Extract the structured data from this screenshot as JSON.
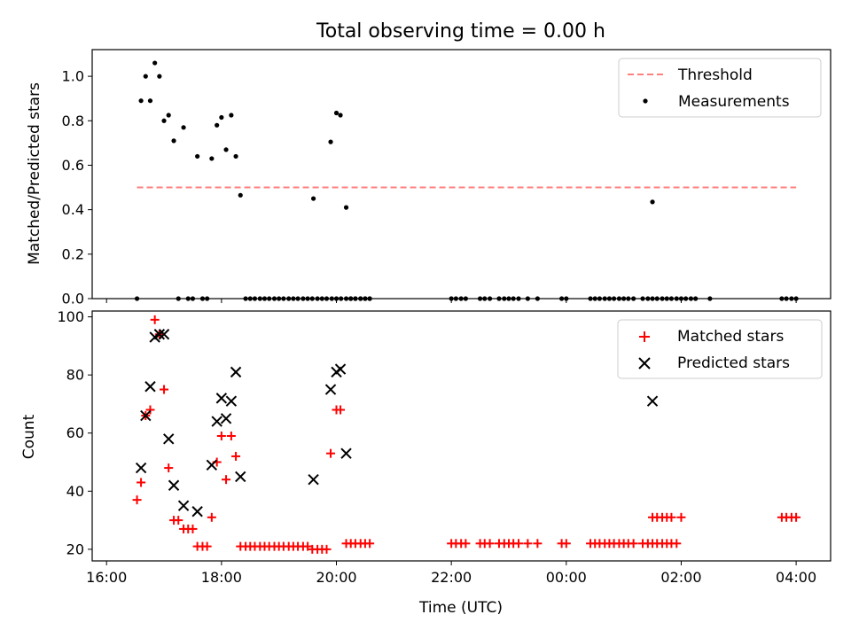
{
  "chart_data": [
    {
      "type": "scatter",
      "title": "Total observing time = 0.00 h",
      "ylabel": "Matched/Predicted stars",
      "xlabel": "",
      "x_unit": "hours since 16:00 UTC",
      "xlim": [
        -0.25,
        12.6
      ],
      "ylim": [
        0,
        1.12
      ],
      "yticks": [
        0.0,
        0.2,
        0.4,
        0.6,
        0.8,
        1.0
      ],
      "ytick_labels": [
        "0.0",
        "0.2",
        "0.4",
        "0.6",
        "0.8",
        "1.0"
      ],
      "legend_position": "top-right",
      "threshold": {
        "name": "Threshold",
        "value": 0.5,
        "x_range": [
          0.53,
          12.0
        ],
        "color": "#ff7f7f",
        "style": "dashed"
      },
      "series": [
        {
          "name": "Measurements",
          "color": "#000000",
          "marker": "dot",
          "points": [
            [
              0.53,
              0.0
            ],
            [
              0.6,
              0.89
            ],
            [
              0.68,
              1.0
            ],
            [
              0.76,
              0.89
            ],
            [
              0.84,
              1.06
            ],
            [
              0.92,
              1.0
            ],
            [
              1.0,
              0.8
            ],
            [
              1.08,
              0.825
            ],
            [
              1.17,
              0.71
            ],
            [
              1.25,
              0.0
            ],
            [
              1.34,
              0.77
            ],
            [
              1.42,
              0.0
            ],
            [
              1.5,
              0.0
            ],
            [
              1.58,
              0.64
            ],
            [
              1.67,
              0.0
            ],
            [
              1.75,
              0.0
            ],
            [
              1.83,
              0.63
            ],
            [
              1.92,
              0.78
            ],
            [
              2.0,
              0.815
            ],
            [
              2.08,
              0.67
            ],
            [
              2.17,
              0.825
            ],
            [
              2.25,
              0.64
            ],
            [
              2.33,
              0.465
            ],
            [
              2.42,
              0.0
            ],
            [
              2.5,
              0.0
            ],
            [
              2.58,
              0.0
            ],
            [
              2.67,
              0.0
            ],
            [
              2.75,
              0.0
            ],
            [
              2.83,
              0.0
            ],
            [
              2.92,
              0.0
            ],
            [
              3.0,
              0.0
            ],
            [
              3.08,
              0.0
            ],
            [
              3.17,
              0.0
            ],
            [
              3.25,
              0.0
            ],
            [
              3.33,
              0.0
            ],
            [
              3.42,
              0.0
            ],
            [
              3.5,
              0.0
            ],
            [
              3.58,
              0.0
            ],
            [
              3.67,
              0.0
            ],
            [
              3.75,
              0.0
            ],
            [
              3.83,
              0.0
            ],
            [
              3.92,
              0.0
            ],
            [
              4.0,
              0.0
            ],
            [
              4.08,
              0.0
            ],
            [
              4.17,
              0.0
            ],
            [
              4.25,
              0.0
            ],
            [
              4.33,
              0.0
            ],
            [
              4.42,
              0.0
            ],
            [
              4.5,
              0.0
            ],
            [
              4.58,
              0.0
            ],
            [
              3.6,
              0.45
            ],
            [
              3.9,
              0.705
            ],
            [
              4.0,
              0.835
            ],
            [
              4.07,
              0.825
            ],
            [
              4.17,
              0.41
            ],
            [
              4.25,
              0.0
            ],
            [
              4.33,
              0.0
            ],
            [
              4.42,
              0.0
            ],
            [
              4.5,
              0.0
            ],
            [
              4.58,
              0.0
            ],
            [
              6.0,
              0.0
            ],
            [
              6.08,
              0.0
            ],
            [
              6.17,
              0.0
            ],
            [
              6.25,
              0.0
            ],
            [
              6.5,
              0.0
            ],
            [
              6.58,
              0.0
            ],
            [
              6.67,
              0.0
            ],
            [
              6.83,
              0.0
            ],
            [
              6.92,
              0.0
            ],
            [
              7.0,
              0.0
            ],
            [
              7.08,
              0.0
            ],
            [
              7.17,
              0.0
            ],
            [
              7.33,
              0.0
            ],
            [
              7.5,
              0.0
            ],
            [
              7.92,
              0.0
            ],
            [
              8.0,
              0.0
            ],
            [
              8.42,
              0.0
            ],
            [
              8.5,
              0.0
            ],
            [
              8.58,
              0.0
            ],
            [
              8.67,
              0.0
            ],
            [
              8.75,
              0.0
            ],
            [
              8.83,
              0.0
            ],
            [
              8.92,
              0.0
            ],
            [
              9.0,
              0.0
            ],
            [
              9.08,
              0.0
            ],
            [
              9.17,
              0.0
            ],
            [
              9.33,
              0.0
            ],
            [
              9.42,
              0.0
            ],
            [
              9.5,
              0.0
            ],
            [
              9.58,
              0.0
            ],
            [
              9.67,
              0.0
            ],
            [
              9.75,
              0.0
            ],
            [
              9.83,
              0.0
            ],
            [
              9.92,
              0.0
            ],
            [
              10.0,
              0.0
            ],
            [
              10.08,
              0.0
            ],
            [
              10.17,
              0.0
            ],
            [
              10.25,
              0.0
            ],
            [
              10.5,
              0.0
            ],
            [
              9.5,
              0.435
            ],
            [
              11.75,
              0.0
            ],
            [
              11.83,
              0.0
            ],
            [
              11.92,
              0.0
            ],
            [
              12.0,
              0.0
            ]
          ]
        }
      ]
    },
    {
      "type": "scatter",
      "title": "",
      "ylabel": "Count",
      "xlabel": "Time (UTC)",
      "x_unit": "hours since 16:00 UTC",
      "xlim": [
        -0.25,
        12.6
      ],
      "ylim": [
        16.0,
        102.0
      ],
      "yticks": [
        20,
        40,
        60,
        80,
        100
      ],
      "ytick_labels": [
        "20",
        "40",
        "60",
        "80",
        "100"
      ],
      "xticks": [
        0,
        2,
        4,
        6,
        8,
        10,
        12
      ],
      "xtick_labels": [
        "16:00",
        "18:00",
        "20:00",
        "22:00",
        "00:00",
        "02:00",
        "04:00"
      ],
      "legend_position": "top-right",
      "series": [
        {
          "name": "Matched stars",
          "color": "#ff0000",
          "marker": "plus",
          "points": [
            [
              0.53,
              37
            ],
            [
              0.6,
              43
            ],
            [
              0.68,
              66
            ],
            [
              0.76,
              68
            ],
            [
              0.84,
              99
            ],
            [
              0.92,
              94
            ],
            [
              1.0,
              75
            ],
            [
              1.08,
              48
            ],
            [
              1.17,
              30
            ],
            [
              1.25,
              30
            ],
            [
              1.34,
              27
            ],
            [
              1.42,
              27
            ],
            [
              1.5,
              27
            ],
            [
              1.58,
              21
            ],
            [
              1.67,
              21
            ],
            [
              1.75,
              21
            ],
            [
              1.83,
              31
            ],
            [
              1.92,
              50
            ],
            [
              2.0,
              59
            ],
            [
              2.08,
              44
            ],
            [
              2.17,
              59
            ],
            [
              2.25,
              52
            ],
            [
              2.33,
              21
            ],
            [
              2.42,
              21
            ],
            [
              2.5,
              21
            ],
            [
              2.58,
              21
            ],
            [
              2.67,
              21
            ],
            [
              2.75,
              21
            ],
            [
              2.83,
              21
            ],
            [
              2.92,
              21
            ],
            [
              3.0,
              21
            ],
            [
              3.08,
              21
            ],
            [
              3.17,
              21
            ],
            [
              3.25,
              21
            ],
            [
              3.33,
              21
            ],
            [
              3.42,
              21
            ],
            [
              3.5,
              21
            ],
            [
              3.58,
              20
            ],
            [
              3.67,
              20
            ],
            [
              3.75,
              20
            ],
            [
              3.83,
              20
            ],
            [
              3.9,
              53
            ],
            [
              4.0,
              68
            ],
            [
              4.07,
              68
            ],
            [
              4.17,
              22
            ],
            [
              4.25,
              22
            ],
            [
              4.33,
              22
            ],
            [
              4.42,
              22
            ],
            [
              4.5,
              22
            ],
            [
              4.58,
              22
            ],
            [
              6.0,
              22
            ],
            [
              6.08,
              22
            ],
            [
              6.17,
              22
            ],
            [
              6.25,
              22
            ],
            [
              6.5,
              22
            ],
            [
              6.58,
              22
            ],
            [
              6.67,
              22
            ],
            [
              6.83,
              22
            ],
            [
              6.92,
              22
            ],
            [
              7.0,
              22
            ],
            [
              7.08,
              22
            ],
            [
              7.17,
              22
            ],
            [
              7.33,
              22
            ],
            [
              7.5,
              22
            ],
            [
              7.92,
              22
            ],
            [
              8.0,
              22
            ],
            [
              8.42,
              22
            ],
            [
              8.5,
              22
            ],
            [
              8.58,
              22
            ],
            [
              8.67,
              22
            ],
            [
              8.75,
              22
            ],
            [
              8.83,
              22
            ],
            [
              8.92,
              22
            ],
            [
              9.0,
              22
            ],
            [
              9.08,
              22
            ],
            [
              9.17,
              22
            ],
            [
              9.33,
              22
            ],
            [
              9.42,
              22
            ],
            [
              9.5,
              22
            ],
            [
              9.58,
              22
            ],
            [
              9.67,
              22
            ],
            [
              9.75,
              22
            ],
            [
              9.83,
              22
            ],
            [
              9.92,
              22
            ],
            [
              9.5,
              31
            ],
            [
              9.58,
              31
            ],
            [
              9.67,
              31
            ],
            [
              9.75,
              31
            ],
            [
              9.83,
              31
            ],
            [
              10.0,
              31
            ],
            [
              11.75,
              31
            ],
            [
              11.83,
              31
            ],
            [
              11.92,
              31
            ],
            [
              12.0,
              31
            ]
          ]
        },
        {
          "name": "Predicted stars",
          "color": "#000000",
          "marker": "x",
          "points": [
            [
              0.6,
              48
            ],
            [
              0.68,
              66
            ],
            [
              0.76,
              76
            ],
            [
              0.84,
              93
            ],
            [
              0.92,
              94
            ],
            [
              1.0,
              94
            ],
            [
              1.08,
              58
            ],
            [
              1.17,
              42
            ],
            [
              1.34,
              35
            ],
            [
              1.58,
              33
            ],
            [
              1.83,
              49
            ],
            [
              1.92,
              64
            ],
            [
              2.0,
              72
            ],
            [
              2.08,
              65
            ],
            [
              2.17,
              71
            ],
            [
              2.25,
              81
            ],
            [
              2.33,
              45
            ],
            [
              3.6,
              44
            ],
            [
              3.9,
              75
            ],
            [
              4.0,
              81
            ],
            [
              4.07,
              82
            ],
            [
              4.17,
              53
            ],
            [
              9.5,
              71
            ]
          ]
        }
      ]
    }
  ]
}
